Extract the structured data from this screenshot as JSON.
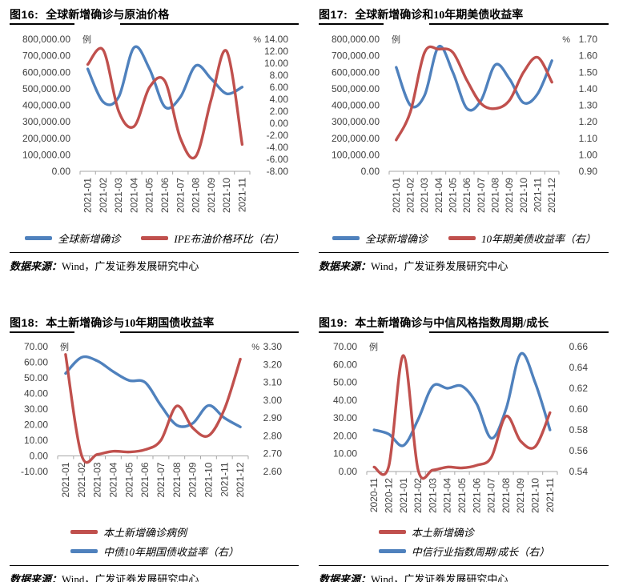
{
  "colors": {
    "blue": "#4F81BD",
    "red": "#C0504D",
    "axis_text": "#3f3f3f",
    "axis_line": "#a6a6a6"
  },
  "source": {
    "prefix": "数据来源：",
    "text": "Wind，广发证券发展研究中心"
  },
  "chart_data": [
    {
      "type": "line",
      "fig_label": "图16:",
      "title": "全球新增确诊与原油价格",
      "left_axis": {
        "unit": "例",
        "min": 0,
        "max": 800000,
        "ticks": [
          "800,000.00",
          "700,000.00",
          "600,000.00",
          "500,000.00",
          "400,000.00",
          "300,000.00",
          "200,000.00",
          "100,000.00",
          "0.00"
        ],
        "tick_values": [
          800000,
          700000,
          600000,
          500000,
          400000,
          300000,
          200000,
          100000,
          0
        ]
      },
      "right_axis": {
        "unit": "%",
        "min": -8,
        "max": 14,
        "ticks": [
          "14.00",
          "12.00",
          "10.00",
          "8.00",
          "6.00",
          "4.00",
          "2.00",
          "0.00",
          "-2.00",
          "-4.00",
          "-6.00",
          "-8.00"
        ],
        "tick_values": [
          14,
          12,
          10,
          8,
          6,
          4,
          2,
          0,
          -2,
          -4,
          -6,
          -8
        ]
      },
      "baseline_value": 0,
      "categories": [
        "2021-01",
        "2021-02",
        "2021-03",
        "2021-04",
        "2021-05",
        "2021-06",
        "2021-07",
        "2021-08",
        "2021-09",
        "2021-10",
        "2021-11"
      ],
      "series": [
        {
          "name": "全球新增确诊",
          "color": "blue",
          "axis": "left",
          "values": [
            620000,
            420000,
            450000,
            750000,
            620000,
            390000,
            450000,
            640000,
            560000,
            470000,
            510000
          ]
        },
        {
          "name": "IPE布油价格环比（右）",
          "color": "red",
          "axis": "right",
          "values": [
            9.8,
            12.2,
            2.0,
            -0.5,
            6.0,
            7.0,
            -2.5,
            -5.5,
            4.0,
            12.0,
            -3.5
          ]
        }
      ],
      "legend": [
        {
          "color": "blue",
          "label": "全球新增确诊"
        },
        {
          "color": "red",
          "label": "IPE布油价格环比（右）"
        }
      ],
      "legend_layout": "row"
    },
    {
      "type": "line",
      "fig_label": "图17:",
      "title": "全球新增确诊和10年期美债收益率",
      "left_axis": {
        "unit": "例",
        "min": 0,
        "max": 800000,
        "ticks": [
          "800,000.00",
          "700,000.00",
          "600,000.00",
          "500,000.00",
          "400,000.00",
          "300,000.00",
          "200,000.00",
          "100,000.00",
          "0.00"
        ],
        "tick_values": [
          800000,
          700000,
          600000,
          500000,
          400000,
          300000,
          200000,
          100000,
          0
        ]
      },
      "right_axis": {
        "unit": "%",
        "min": 0.9,
        "max": 1.7,
        "ticks": [
          "1.70",
          "1.60",
          "1.50",
          "1.40",
          "1.30",
          "1.20",
          "1.10",
          "1.00",
          "0.90"
        ],
        "tick_values": [
          1.7,
          1.6,
          1.5,
          1.4,
          1.3,
          1.2,
          1.1,
          1.0,
          0.9
        ]
      },
      "baseline_value": 0,
      "categories": [
        "2021-01",
        "2021-02",
        "2021-03",
        "2021-04",
        "2021-05",
        "2021-06",
        "2021-07",
        "2021-08",
        "2021-09",
        "2021-10",
        "2021-11",
        "2021-12"
      ],
      "series": [
        {
          "name": "全球新增确诊",
          "color": "blue",
          "axis": "left",
          "values": [
            630000,
            400000,
            460000,
            755000,
            600000,
            380000,
            430000,
            645000,
            560000,
            415000,
            470000,
            670000
          ]
        },
        {
          "name": "10年期美债收益率（右）",
          "color": "red",
          "axis": "right",
          "values": [
            1.09,
            1.26,
            1.62,
            1.64,
            1.62,
            1.45,
            1.31,
            1.28,
            1.33,
            1.5,
            1.59,
            1.44
          ]
        }
      ],
      "legend": [
        {
          "color": "blue",
          "label": "全球新增确诊"
        },
        {
          "color": "red",
          "label": "10年期美债收益率（右）"
        }
      ],
      "legend_layout": "row"
    },
    {
      "type": "line",
      "fig_label": "图18:",
      "title": "本土新增确诊与10年期国债收益率",
      "left_axis": {
        "unit": "例",
        "min": -10,
        "max": 70,
        "ticks": [
          "70.00",
          "60.00",
          "50.00",
          "40.00",
          "30.00",
          "20.00",
          "10.00",
          "0.00",
          "-10.00"
        ],
        "tick_values": [
          70,
          60,
          50,
          40,
          30,
          20,
          10,
          0,
          -10
        ]
      },
      "right_axis": {
        "unit": "%",
        "min": 2.6,
        "max": 3.3,
        "ticks": [
          "3.30",
          "3.20",
          "3.10",
          "3.00",
          "2.90",
          "2.80",
          "2.70",
          "2.60"
        ],
        "tick_values": [
          3.3,
          3.2,
          3.1,
          3.0,
          2.9,
          2.8,
          2.7,
          2.6
        ]
      },
      "baseline_value": 0,
      "categories": [
        "2021-01",
        "2021-02",
        "2021-03",
        "2021-04",
        "2021-05",
        "2021-06",
        "2021-07",
        "2021-08",
        "2021-09",
        "2021-10",
        "2021-11",
        "2021-12"
      ],
      "series": [
        {
          "name": "本土新增确诊病例",
          "color": "red",
          "axis": "left",
          "values": [
            65,
            0.5,
            1,
            3,
            2.5,
            4,
            10,
            32,
            18,
            13,
            30,
            62
          ]
        },
        {
          "name": "中债10年期国债收益率（右）",
          "color": "blue",
          "axis": "right",
          "values": [
            3.15,
            3.24,
            3.22,
            3.16,
            3.11,
            3.1,
            2.97,
            2.86,
            2.87,
            2.97,
            2.9,
            2.85
          ]
        }
      ],
      "legend": [
        {
          "color": "red",
          "label": "本土新增确诊病例"
        },
        {
          "color": "blue",
          "label": "中债10年期国债收益率（右）"
        }
      ],
      "legend_layout": "column"
    },
    {
      "type": "line",
      "fig_label": "图19:",
      "title": "本土新增确诊与中信风格指数周期/成长",
      "left_axis": {
        "unit": "例",
        "min": 0,
        "max": 70,
        "ticks": [
          "70.00",
          "60.00",
          "50.00",
          "40.00",
          "30.00",
          "20.00",
          "10.00",
          "0.00"
        ],
        "tick_values": [
          70,
          60,
          50,
          40,
          30,
          20,
          10,
          0
        ]
      },
      "right_axis": {
        "unit": "",
        "min": 0.54,
        "max": 0.66,
        "ticks": [
          "0.66",
          "0.64",
          "0.62",
          "0.60",
          "0.58",
          "0.56",
          "0.54"
        ],
        "tick_values": [
          0.66,
          0.64,
          0.62,
          0.6,
          0.58,
          0.56,
          0.54
        ]
      },
      "baseline_value": 0,
      "categories": [
        "2020-11",
        "2020-12",
        "2021-01",
        "2021-02",
        "2021-03",
        "2021-04",
        "2021-05",
        "2021-06",
        "2021-07",
        "2021-08",
        "2021-09",
        "2021-10",
        "2021-11"
      ],
      "series": [
        {
          "name": "本土新增确诊",
          "color": "red",
          "axis": "left",
          "values": [
            2.5,
            3,
            65,
            1,
            0.8,
            2.5,
            2,
            3.5,
            8,
            31,
            17,
            14,
            33
          ]
        },
        {
          "name": "中信行业指数周期/成长（右）",
          "color": "blue",
          "axis": "right",
          "values": [
            0.58,
            0.576,
            0.565,
            0.59,
            0.622,
            0.62,
            0.622,
            0.605,
            0.572,
            0.6,
            0.653,
            0.625,
            0.58
          ]
        }
      ],
      "legend": [
        {
          "color": "red",
          "label": "本土新增确诊"
        },
        {
          "color": "blue",
          "label": "中信行业指数周期/成长（右）"
        }
      ],
      "legend_layout": "column"
    }
  ]
}
